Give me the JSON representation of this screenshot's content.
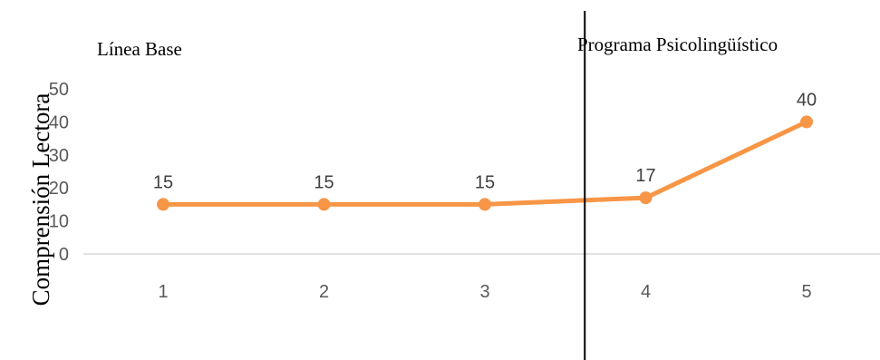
{
  "chart_data": {
    "type": "line",
    "x": [
      1,
      2,
      3,
      4,
      5
    ],
    "tick_labels_x": [
      "1",
      "2",
      "3",
      "4",
      "5"
    ],
    "series": [
      {
        "values": [
          15,
          15,
          15,
          17,
          40
        ],
        "color": "#F79646"
      }
    ],
    "data_labels": [
      "15",
      "15",
      "15",
      "17",
      "40"
    ],
    "ylabel": "Comprensión Lectora",
    "ylim": [
      0,
      50
    ],
    "yticks": [
      "0",
      "10",
      "20",
      "30",
      "40",
      "50"
    ],
    "grid": false,
    "phase_line_between": [
      3,
      4
    ],
    "phases": [
      {
        "label": "Línea Base"
      },
      {
        "label": "Programa Psicolingüístico"
      }
    ],
    "colors": {
      "line": "#F79646",
      "axis": "#D9D9D9",
      "phase_divider": "#000000"
    }
  }
}
